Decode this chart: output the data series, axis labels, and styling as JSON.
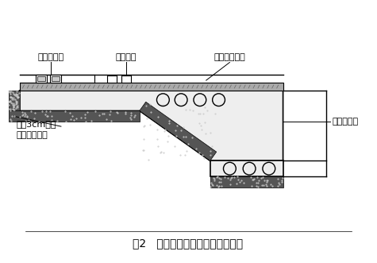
{
  "title": "图2   连续梁脱模后梁段保温示意图",
  "label_dianre": "电热发热垫",
  "label_fare": "发热电缆",
  "label_mianpei": "棉被（苫布）",
  "label_yingdao": "预应力管道",
  "label_foam": "粘贴3cm厚橡\n塑泡沫保温层",
  "bg_color": "#ffffff",
  "line_color": "#000000",
  "title_fontsize": 10,
  "label_fontsize": 8
}
